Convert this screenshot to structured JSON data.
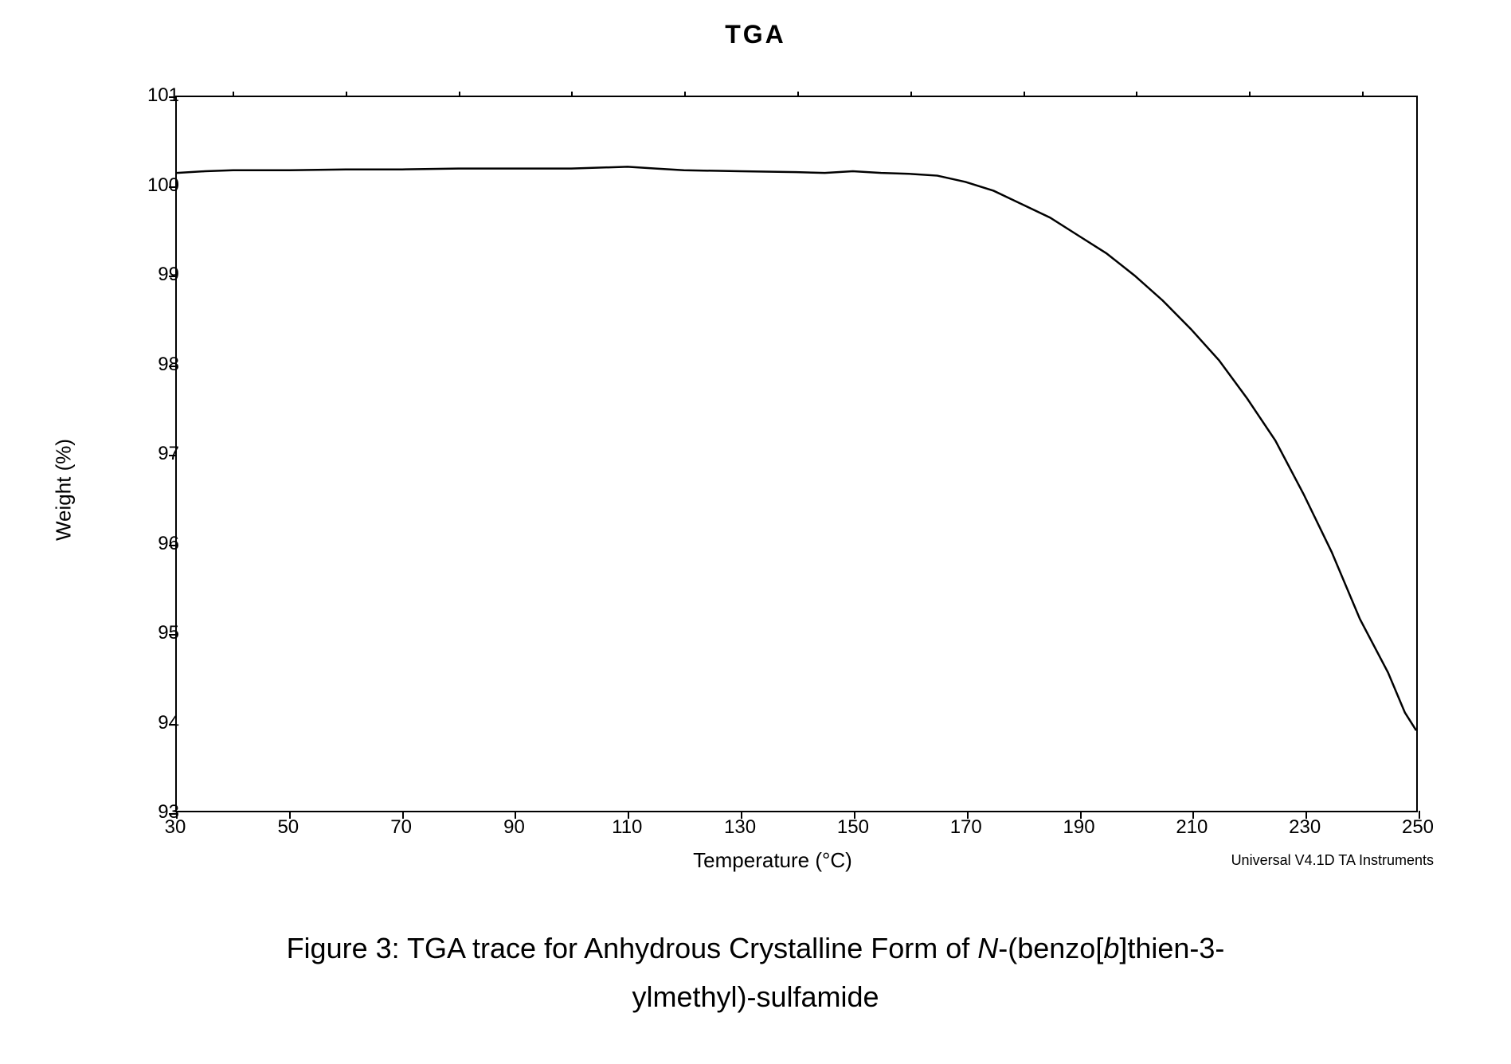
{
  "title": "TGA",
  "chart": {
    "type": "line",
    "xlabel": "Temperature (°C)",
    "ylabel": "Weight (%)",
    "xlim": [
      30,
      250
    ],
    "ylim": [
      93,
      101
    ],
    "x_ticks": [
      30,
      50,
      70,
      90,
      110,
      130,
      150,
      170,
      190,
      210,
      230,
      250
    ],
    "y_ticks": [
      93,
      94,
      95,
      96,
      97,
      98,
      99,
      100,
      101
    ],
    "x_minor_step": 10,
    "line_color": "#000000",
    "line_width": 2.5,
    "background_color": "#ffffff",
    "border_color": "#000000",
    "tick_fontsize": 24,
    "label_fontsize": 26,
    "data_points": [
      [
        30,
        100.15
      ],
      [
        35,
        100.17
      ],
      [
        40,
        100.18
      ],
      [
        50,
        100.18
      ],
      [
        60,
        100.19
      ],
      [
        70,
        100.19
      ],
      [
        80,
        100.2
      ],
      [
        90,
        100.2
      ],
      [
        100,
        100.2
      ],
      [
        110,
        100.22
      ],
      [
        115,
        100.2
      ],
      [
        120,
        100.18
      ],
      [
        130,
        100.17
      ],
      [
        140,
        100.16
      ],
      [
        145,
        100.15
      ],
      [
        150,
        100.17
      ],
      [
        155,
        100.15
      ],
      [
        160,
        100.14
      ],
      [
        165,
        100.12
      ],
      [
        170,
        100.05
      ],
      [
        175,
        99.95
      ],
      [
        180,
        99.8
      ],
      [
        185,
        99.65
      ],
      [
        190,
        99.45
      ],
      [
        195,
        99.25
      ],
      [
        200,
        99.0
      ],
      [
        205,
        98.72
      ],
      [
        210,
        98.4
      ],
      [
        215,
        98.05
      ],
      [
        220,
        97.62
      ],
      [
        225,
        97.15
      ],
      [
        230,
        96.55
      ],
      [
        235,
        95.9
      ],
      [
        240,
        95.15
      ],
      [
        245,
        94.55
      ],
      [
        248,
        94.1
      ],
      [
        250,
        93.9
      ]
    ],
    "footer": "Universal V4.1D TA Instruments"
  },
  "caption": {
    "prefix": "Figure 3: TGA trace for Anhydrous Crystalline Form of ",
    "italic1": "N",
    "mid1": "-(benzo[",
    "italic2": "b",
    "mid2": "]thien-3-",
    "line2": "ylmethyl)-sulfamide"
  }
}
